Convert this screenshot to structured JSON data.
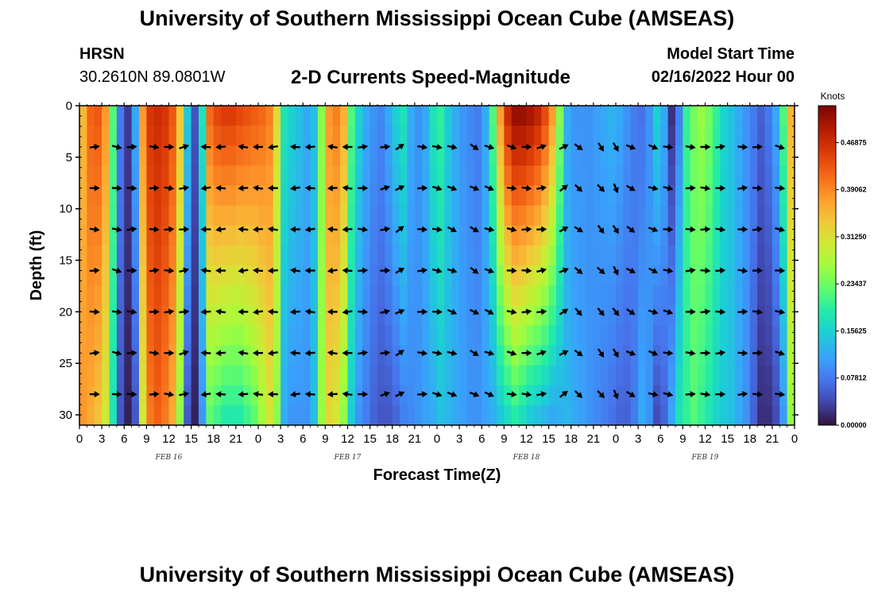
{
  "page": {
    "title": "University of Southern Mississippi Ocean Cube (AMSEAS)",
    "title_repeat": "University of Southern Mississippi Ocean Cube (AMSEAS)",
    "station": "HRSN",
    "location": "30.2610N  89.0801W",
    "plot_title": "2-D Currents Speed-Magnitude",
    "model_start_label": "Model Start Time",
    "model_start_value": "02/16/2022 Hour 00"
  },
  "chart_data": {
    "type": "heatmap",
    "title": "2-D Currents Speed-Magnitude",
    "xlabel": "Forecast Time(Z)",
    "ylabel": "Depth (ft)",
    "x_range_hours": [
      0,
      96
    ],
    "y_range_ft": [
      0,
      31
    ],
    "y_ticks": [
      0,
      5,
      10,
      15,
      20,
      25,
      30
    ],
    "x_tick_labels": [
      "0",
      "3",
      "6",
      "9",
      "12",
      "15",
      "18",
      "21",
      "0",
      "3",
      "6",
      "9",
      "12",
      "15",
      "18",
      "21",
      "0",
      "3",
      "6",
      "9",
      "12",
      "15",
      "18",
      "21",
      "0",
      "3",
      "6",
      "9",
      "12",
      "15",
      "18",
      "21",
      "0"
    ],
    "date_labels": [
      {
        "hour": 12,
        "text": "FEB 16"
      },
      {
        "hour": 36,
        "text": "FEB 17"
      },
      {
        "hour": 60,
        "text": "FEB 18"
      },
      {
        "hour": 84,
        "text": "FEB 19"
      }
    ],
    "colorbar": {
      "unit": "Knots",
      "min": 0.0,
      "max": 0.53,
      "ticks": [
        "0.00000",
        "0.07812",
        "0.15625",
        "0.23437",
        "0.31250",
        "0.39062",
        "0.46875"
      ]
    },
    "arrow_depths_ft": [
      4,
      8,
      12,
      16,
      20,
      24,
      28
    ],
    "speed_profile": {
      "hours": [
        0,
        1,
        2,
        3,
        4,
        5,
        6,
        7,
        8,
        9,
        10,
        11,
        12,
        13,
        14,
        15,
        16,
        17,
        18,
        19,
        20,
        21,
        22,
        23,
        24,
        25,
        26,
        27,
        28,
        29,
        30,
        31,
        32,
        33,
        34,
        35,
        36,
        37,
        38,
        39,
        40,
        41,
        42,
        43,
        44,
        45,
        46,
        47,
        48,
        49,
        50,
        51,
        52,
        53,
        54,
        55,
        56,
        57,
        58,
        59,
        60,
        61,
        62,
        63,
        64,
        65,
        66,
        67,
        68,
        69,
        70,
        71,
        72,
        73,
        74,
        75,
        76,
        77,
        78,
        79,
        80,
        81,
        82,
        83,
        84,
        85,
        86,
        87,
        88,
        89,
        90,
        91,
        92,
        93,
        94,
        95,
        96
      ],
      "surface": [
        0.35,
        0.42,
        0.43,
        0.38,
        0.22,
        0.08,
        0.03,
        0.12,
        0.38,
        0.46,
        0.47,
        0.46,
        0.43,
        0.34,
        0.15,
        0.05,
        0.18,
        0.42,
        0.45,
        0.46,
        0.46,
        0.45,
        0.44,
        0.43,
        0.42,
        0.4,
        0.32,
        0.18,
        0.16,
        0.14,
        0.12,
        0.14,
        0.25,
        0.38,
        0.4,
        0.36,
        0.22,
        0.16,
        0.12,
        0.1,
        0.09,
        0.12,
        0.16,
        0.18,
        0.12,
        0.1,
        0.12,
        0.18,
        0.2,
        0.15,
        0.12,
        0.1,
        0.09,
        0.08,
        0.12,
        0.22,
        0.38,
        0.48,
        0.52,
        0.52,
        0.51,
        0.49,
        0.45,
        0.38,
        0.25,
        0.12,
        0.1,
        0.1,
        0.1,
        0.11,
        0.12,
        0.13,
        0.12,
        0.1,
        0.08,
        0.07,
        0.1,
        0.16,
        0.12,
        0.02,
        0.08,
        0.2,
        0.24,
        0.26,
        0.24,
        0.2,
        0.16,
        0.14,
        0.12,
        0.1,
        0.08,
        0.06,
        0.08,
        0.12,
        0.22,
        0.36,
        0.36
      ],
      "bottom": [
        0.38,
        0.36,
        0.34,
        0.3,
        0.18,
        0.05,
        0.01,
        0.05,
        0.3,
        0.4,
        0.42,
        0.4,
        0.36,
        0.25,
        0.05,
        0.01,
        0.1,
        0.22,
        0.2,
        0.18,
        0.18,
        0.18,
        0.2,
        0.22,
        0.26,
        0.3,
        0.25,
        0.12,
        0.1,
        0.1,
        0.1,
        0.14,
        0.26,
        0.32,
        0.3,
        0.25,
        0.15,
        0.1,
        0.08,
        0.06,
        0.05,
        0.05,
        0.06,
        0.08,
        0.09,
        0.1,
        0.11,
        0.12,
        0.14,
        0.13,
        0.12,
        0.11,
        0.1,
        0.1,
        0.11,
        0.12,
        0.14,
        0.16,
        0.18,
        0.16,
        0.14,
        0.13,
        0.12,
        0.11,
        0.12,
        0.13,
        0.12,
        0.11,
        0.1,
        0.09,
        0.08,
        0.07,
        0.06,
        0.06,
        0.08,
        0.12,
        0.1,
        0.04,
        0.06,
        0.12,
        0.18,
        0.2,
        0.22,
        0.2,
        0.18,
        0.16,
        0.15,
        0.14,
        0.12,
        0.1,
        0.06,
        0.02,
        0.02,
        0.04,
        0.1,
        0.25,
        0.3
      ]
    },
    "arrow_times_hours": [
      2,
      5,
      7,
      10,
      12,
      14,
      17,
      19,
      22,
      24,
      26,
      29,
      31,
      34,
      36,
      38,
      41,
      43,
      46,
      48,
      50,
      53,
      55,
      58,
      60,
      62,
      65,
      67,
      70,
      72,
      74,
      77,
      79,
      82,
      84,
      86,
      89,
      91,
      94
    ],
    "arrow_direction_deg": [
      90,
      100,
      90,
      90,
      90,
      80,
      270,
      270,
      270,
      270,
      270,
      270,
      270,
      270,
      270,
      90,
      80,
      60,
      90,
      100,
      110,
      120,
      110,
      100,
      90,
      80,
      60,
      130,
      140,
      150,
      120,
      110,
      100,
      90,
      90,
      90,
      90,
      90,
      100
    ]
  }
}
